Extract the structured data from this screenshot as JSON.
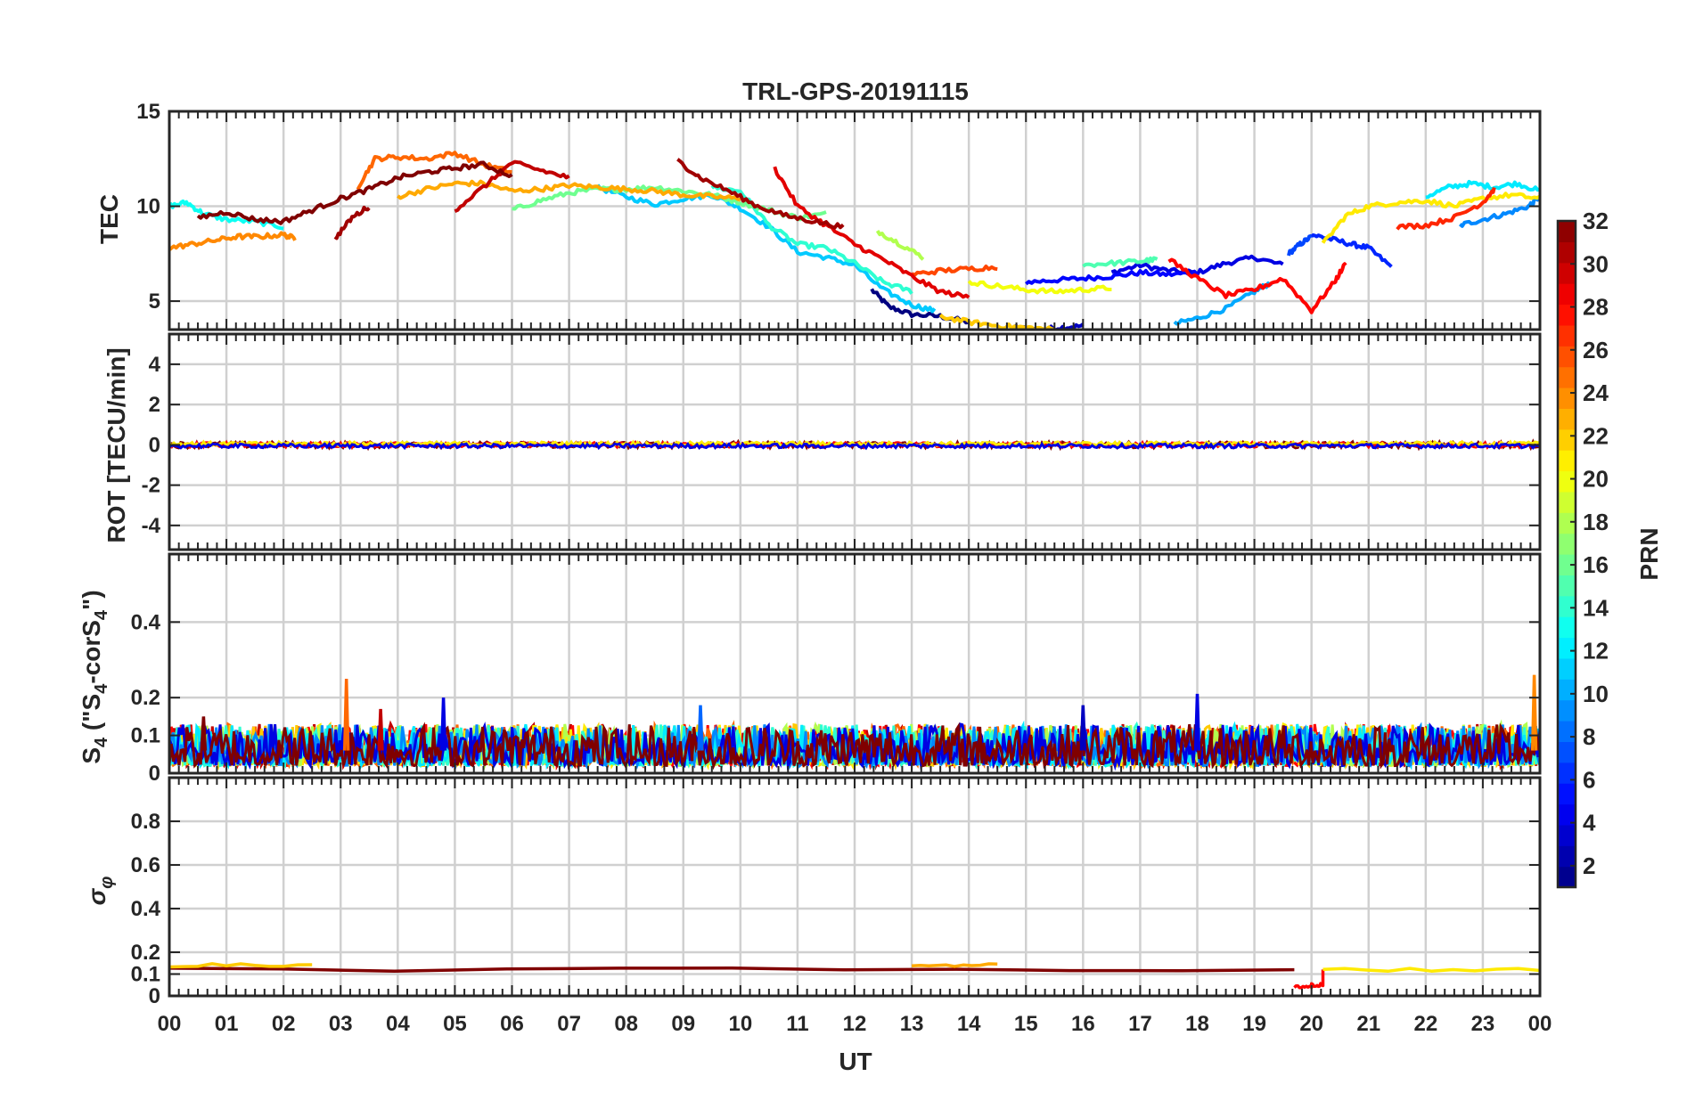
{
  "chart_data": {
    "type": "line",
    "title": "TRL-GPS-20191115",
    "xlabel": "UT",
    "x_tick_labels": [
      "00",
      "01",
      "02",
      "03",
      "04",
      "05",
      "06",
      "07",
      "08",
      "09",
      "10",
      "11",
      "12",
      "13",
      "14",
      "15",
      "16",
      "17",
      "18",
      "19",
      "20",
      "21",
      "22",
      "23",
      "00"
    ],
    "xlim": [
      0,
      24
    ],
    "grid": true,
    "colorbar": {
      "label": "PRN",
      "ticks": [
        "2",
        "4",
        "6",
        "8",
        "10",
        "12",
        "14",
        "16",
        "18",
        "20",
        "22",
        "24",
        "26",
        "28",
        "30",
        "32"
      ],
      "range": [
        1,
        32
      ],
      "colormap": "jet",
      "colors": [
        "#00008f",
        "#0000ff",
        "#0080ff",
        "#00ffff",
        "#80ff80",
        "#ffff00",
        "#ff8000",
        "#ff0000",
        "#800000"
      ]
    },
    "panels": [
      {
        "name": "tec",
        "ylabel": "TEC",
        "ylim": [
          3.5,
          15
        ],
        "y_ticks": [
          "5",
          "10",
          "15"
        ],
        "y_tick_values": [
          5,
          10,
          15
        ],
        "series": [
          {
            "prn": 1,
            "x": [
              12.3,
              12.6,
              13.0,
              13.5,
              14.0
            ],
            "y": [
              5.6,
              4.7,
              4.3,
              4.2,
              3.9
            ]
          },
          {
            "prn": 3,
            "x": [
              14.8,
              15.2,
              15.6,
              16.0
            ],
            "y": [
              3.6,
              3.5,
              3.6,
              3.7
            ]
          },
          {
            "prn": 4,
            "x": [
              16.5,
              17.0,
              17.5,
              18.0,
              18.5,
              19.0,
              19.5
            ],
            "y": [
              6.5,
              6.9,
              6.6,
              6.5,
              7.0,
              7.3,
              6.9
            ]
          },
          {
            "prn": 5,
            "x": [
              15.0,
              15.5,
              16.0,
              16.5,
              17.0,
              17.5,
              18.0
            ],
            "y": [
              6.0,
              6.1,
              6.2,
              6.3,
              6.5,
              6.4,
              6.5
            ]
          },
          {
            "prn": 6,
            "x": [
              20.0,
              20.3,
              20.7,
              21.0,
              21.4
            ],
            "y": [
              8.5,
              8.3,
              8.0,
              7.8,
              6.8
            ]
          },
          {
            "prn": 7,
            "x": [
              19.6,
              19.8,
              20.0
            ],
            "y": [
              7.5,
              8.0,
              8.4
            ]
          },
          {
            "prn": 9,
            "x": [
              22.6,
              23.0,
              23.4,
              23.8,
              24.0
            ],
            "y": [
              9.0,
              9.3,
              9.6,
              10.0,
              10.5
            ]
          },
          {
            "prn": 10,
            "x": [
              17.6,
              18.0,
              18.5,
              19.0,
              19.3
            ],
            "y": [
              3.8,
              4.1,
              4.6,
              5.5,
              6.0
            ]
          },
          {
            "prn": 11,
            "x": [
              7.5,
              8.0,
              8.5,
              9.0,
              9.5,
              10.0,
              10.5,
              11.0,
              11.5,
              12.0,
              12.5,
              13.0,
              13.4
            ],
            "y": [
              11.0,
              10.5,
              10.1,
              10.4,
              10.6,
              9.9,
              8.9,
              7.6,
              7.3,
              6.9,
              5.6,
              4.8,
              4.5
            ]
          },
          {
            "prn": 12,
            "x": [
              22.0,
              22.4,
              22.8,
              23.2,
              23.6,
              24.0
            ],
            "y": [
              10.5,
              11.0,
              11.2,
              11.0,
              11.2,
              10.8
            ]
          },
          {
            "prn": 13,
            "x": [
              0.0,
              0.3,
              0.6,
              1.0,
              1.5,
              2.0
            ],
            "y": [
              10.0,
              10.2,
              9.6,
              9.3,
              9.2,
              8.9
            ]
          },
          {
            "prn": 14,
            "x": [
              9.5,
              10.0,
              10.5,
              11.0,
              11.5,
              12.0,
              12.5,
              13.0
            ],
            "y": [
              11.0,
              10.8,
              9.0,
              8.0,
              7.8,
              7.0,
              6.0,
              5.5
            ]
          },
          {
            "prn": 15,
            "x": [
              16.0,
              16.5,
              17.0,
              17.3
            ],
            "y": [
              6.9,
              7.0,
              7.1,
              7.2
            ]
          },
          {
            "prn": 16,
            "x": [
              6.0,
              6.5,
              7.0,
              7.5,
              8.0,
              8.5,
              9.0,
              9.5,
              10.0,
              10.5,
              11.0,
              11.5
            ],
            "y": [
              9.8,
              10.3,
              10.7,
              10.9,
              10.9,
              11.0,
              10.8,
              10.6,
              10.2,
              9.8,
              9.4,
              9.6
            ]
          },
          {
            "prn": 18,
            "x": [
              12.4,
              12.8,
              13.2
            ],
            "y": [
              8.7,
              8.0,
              7.3
            ]
          },
          {
            "prn": 20,
            "x": [
              14.0,
              14.5,
              15.0,
              15.5,
              16.0,
              16.5
            ],
            "y": [
              6.0,
              5.8,
              5.6,
              5.5,
              5.6,
              5.7
            ]
          },
          {
            "prn": 21,
            "x": [
              20.2,
              20.6,
              21.0,
              21.5,
              22.0,
              22.5,
              23.0,
              23.5,
              24.0
            ],
            "y": [
              8.0,
              9.5,
              10.0,
              10.2,
              10.3,
              10.0,
              10.4,
              10.6,
              10.4
            ]
          },
          {
            "prn": 22,
            "x": [
              13.5,
              14.0,
              14.5,
              15.0,
              15.5
            ],
            "y": [
              4.2,
              3.9,
              3.7,
              3.6,
              3.5
            ]
          },
          {
            "prn": 23,
            "x": [
              4.0,
              4.5,
              5.0,
              5.5,
              6.0,
              6.5,
              7.0,
              7.5,
              8.0,
              8.5,
              9.0,
              9.5,
              10.0
            ],
            "y": [
              10.5,
              10.9,
              11.2,
              11.2,
              10.8,
              10.9,
              11.1,
              11.0,
              10.9,
              10.8,
              10.6,
              10.5,
              10.4
            ]
          },
          {
            "prn": 24,
            "x": [
              0.0,
              0.4,
              0.8,
              1.2,
              1.6,
              2.0,
              2.2
            ],
            "y": [
              7.8,
              8.0,
              8.2,
              8.4,
              8.4,
              8.5,
              8.3
            ]
          },
          {
            "prn": 25,
            "x": [
              3.3,
              3.6,
              4.0,
              4.5,
              5.0,
              5.5,
              6.0
            ],
            "y": [
              11.0,
              12.5,
              12.6,
              12.5,
              12.8,
              12.2,
              11.8
            ]
          },
          {
            "prn": 26,
            "x": [
              13.0,
              13.5,
              14.0,
              14.5
            ],
            "y": [
              6.4,
              6.6,
              6.7,
              6.8
            ]
          },
          {
            "prn": 27,
            "x": [
              21.5,
              22.0,
              22.5,
              23.0,
              23.2
            ],
            "y": [
              8.9,
              9.0,
              9.4,
              10.2,
              10.9
            ]
          },
          {
            "prn": 28,
            "x": [
              17.5,
              18.0,
              18.5,
              19.0,
              19.5,
              20.0,
              20.4,
              20.6
            ],
            "y": [
              7.2,
              6.2,
              5.3,
              5.6,
              6.2,
              4.5,
              6.0,
              7.0
            ]
          },
          {
            "prn": 29,
            "x": [
              10.6,
              11.0,
              11.5,
              12.0,
              12.5,
              13.0,
              13.5,
              14.0
            ],
            "y": [
              12.0,
              10.0,
              9.0,
              8.0,
              7.2,
              6.3,
              5.5,
              5.2
            ]
          },
          {
            "prn": 30,
            "x": [
              5.0,
              5.5,
              6.0,
              6.5,
              7.0
            ],
            "y": [
              9.8,
              11.0,
              12.3,
              11.9,
              11.5
            ]
          },
          {
            "prn": 31,
            "x": [
              8.9,
              9.3,
              9.8,
              10.3,
              10.8,
              11.3,
              11.8
            ],
            "y": [
              12.4,
              11.5,
              10.8,
              10.0,
              9.5,
              9.2,
              8.9
            ]
          },
          {
            "prn": 32,
            "x": [
              0.5,
              1.0,
              1.5,
              2.0,
              2.5,
              3.0,
              3.5,
              4.0,
              4.5,
              5.0,
              5.5,
              6.0
            ],
            "y": [
              9.4,
              9.7,
              9.3,
              9.2,
              9.8,
              10.4,
              10.9,
              11.5,
              11.8,
              12.0,
              12.2,
              11.6
            ]
          },
          {
            "prn": 31,
            "x": [
              2.9,
              3.2,
              3.5
            ],
            "y": [
              8.3,
              9.4,
              10.0
            ]
          }
        ]
      },
      {
        "name": "rot",
        "ylabel": "ROT [TECU/min]",
        "ylim": [
          -5.2,
          5.5
        ],
        "y_ticks": [
          "-4",
          "-2",
          "0",
          "2",
          "4"
        ],
        "y_tick_values": [
          -4,
          -2,
          0,
          2,
          4
        ],
        "series_note": "All PRN series near 0 TECU/min (within about ±0.3) across 00–24 UT",
        "series": [
          {
            "prn": 32,
            "x": [
              0.0,
              24.0
            ],
            "y": [
              0.0,
              0.0
            ],
            "amp": 0.15
          },
          {
            "prn": 28,
            "x": [
              0.0,
              24.0
            ],
            "y": [
              0.0,
              0.0
            ],
            "amp": 0.12
          },
          {
            "prn": 21,
            "x": [
              0.0,
              24.0
            ],
            "y": [
              0.05,
              0.05
            ],
            "amp": 0.1
          },
          {
            "prn": 4,
            "x": [
              0.0,
              24.0
            ],
            "y": [
              -0.05,
              -0.05
            ],
            "amp": 0.1
          }
        ]
      },
      {
        "name": "s4",
        "ylabel": "S4 (\"S4-corS4\")",
        "ylim": [
          0,
          0.58
        ],
        "y_ticks": [
          "0",
          "0.1",
          "0.2",
          "0.4"
        ],
        "y_tick_values": [
          0,
          0.1,
          0.2,
          0.4
        ],
        "series_note": "S4 values fluctuate mostly between 0.02 and 0.15 with isolated peaks",
        "peaks": [
          {
            "x": 3.1,
            "y": 0.25,
            "prn": 25
          },
          {
            "x": 4.8,
            "y": 0.2,
            "prn": 4
          },
          {
            "x": 18.0,
            "y": 0.21,
            "prn": 4
          },
          {
            "x": 16.0,
            "y": 0.18,
            "prn": 3
          },
          {
            "x": 23.9,
            "y": 0.26,
            "prn": 24
          },
          {
            "x": 9.3,
            "y": 0.18,
            "prn": 8
          },
          {
            "x": 0.6,
            "y": 0.15,
            "prn": 32
          },
          {
            "x": 3.7,
            "y": 0.17,
            "prn": 30
          }
        ],
        "base_range": [
          0.02,
          0.13
        ]
      },
      {
        "name": "sigma_phi",
        "ylabel": "σφ",
        "ylim": [
          0,
          1.0
        ],
        "y_ticks": [
          "0",
          "0.1",
          "0.2",
          "0.4",
          "0.6",
          "0.8"
        ],
        "y_tick_values": [
          0,
          0.1,
          0.2,
          0.4,
          0.6,
          0.8
        ],
        "series": [
          {
            "prn": 32,
            "x": [
              0.0,
              19.7
            ],
            "y": [
              0.12,
              0.12
            ]
          },
          {
            "prn": 22,
            "x": [
              0.0,
              2.5
            ],
            "y": [
              0.14,
              0.14
            ]
          },
          {
            "prn": 23,
            "x": [
              13.0,
              14.5
            ],
            "y": [
              0.14,
              0.14
            ]
          },
          {
            "prn": 28,
            "x": [
              19.7,
              20.0,
              20.0,
              20.2,
              20.2
            ],
            "y": [
              0.04,
              0.04,
              0.05,
              0.05,
              0.12
            ]
          },
          {
            "prn": 21,
            "x": [
              20.2,
              24.0
            ],
            "y": [
              0.12,
              0.12
            ]
          }
        ]
      }
    ]
  }
}
